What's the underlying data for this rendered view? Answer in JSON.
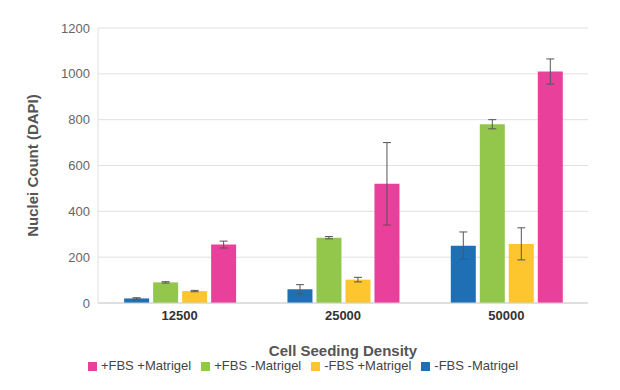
{
  "chart_data": {
    "type": "bar",
    "categories": [
      "12500",
      "25000",
      "50000"
    ],
    "x_label": "Cell Seeding Density",
    "y_label": "Nuclei Count (DAPI)",
    "ylim": [
      0,
      1200
    ],
    "yticks": [
      0,
      200,
      400,
      600,
      800,
      1000,
      1200
    ],
    "grid": true,
    "legend": "bottom",
    "series": [
      {
        "name": "-FBS -Matrigel",
        "color": "#1f6fb4",
        "values": [
          20,
          60,
          250
        ],
        "errors": [
          3,
          20,
          60
        ]
      },
      {
        "name": "+FBS -Matrigel",
        "color": "#92c74b",
        "values": [
          90,
          285,
          780
        ],
        "errors": [
          3,
          5,
          20
        ]
      },
      {
        "name": "-FBS +Matrigel",
        "color": "#fdc62f",
        "values": [
          52,
          102,
          258
        ],
        "errors": [
          3,
          10,
          70
        ]
      },
      {
        "name": "+FBS +Matrigel",
        "color": "#e9409b",
        "values": [
          255,
          520,
          1010
        ],
        "errors": [
          15,
          180,
          55
        ]
      }
    ]
  }
}
